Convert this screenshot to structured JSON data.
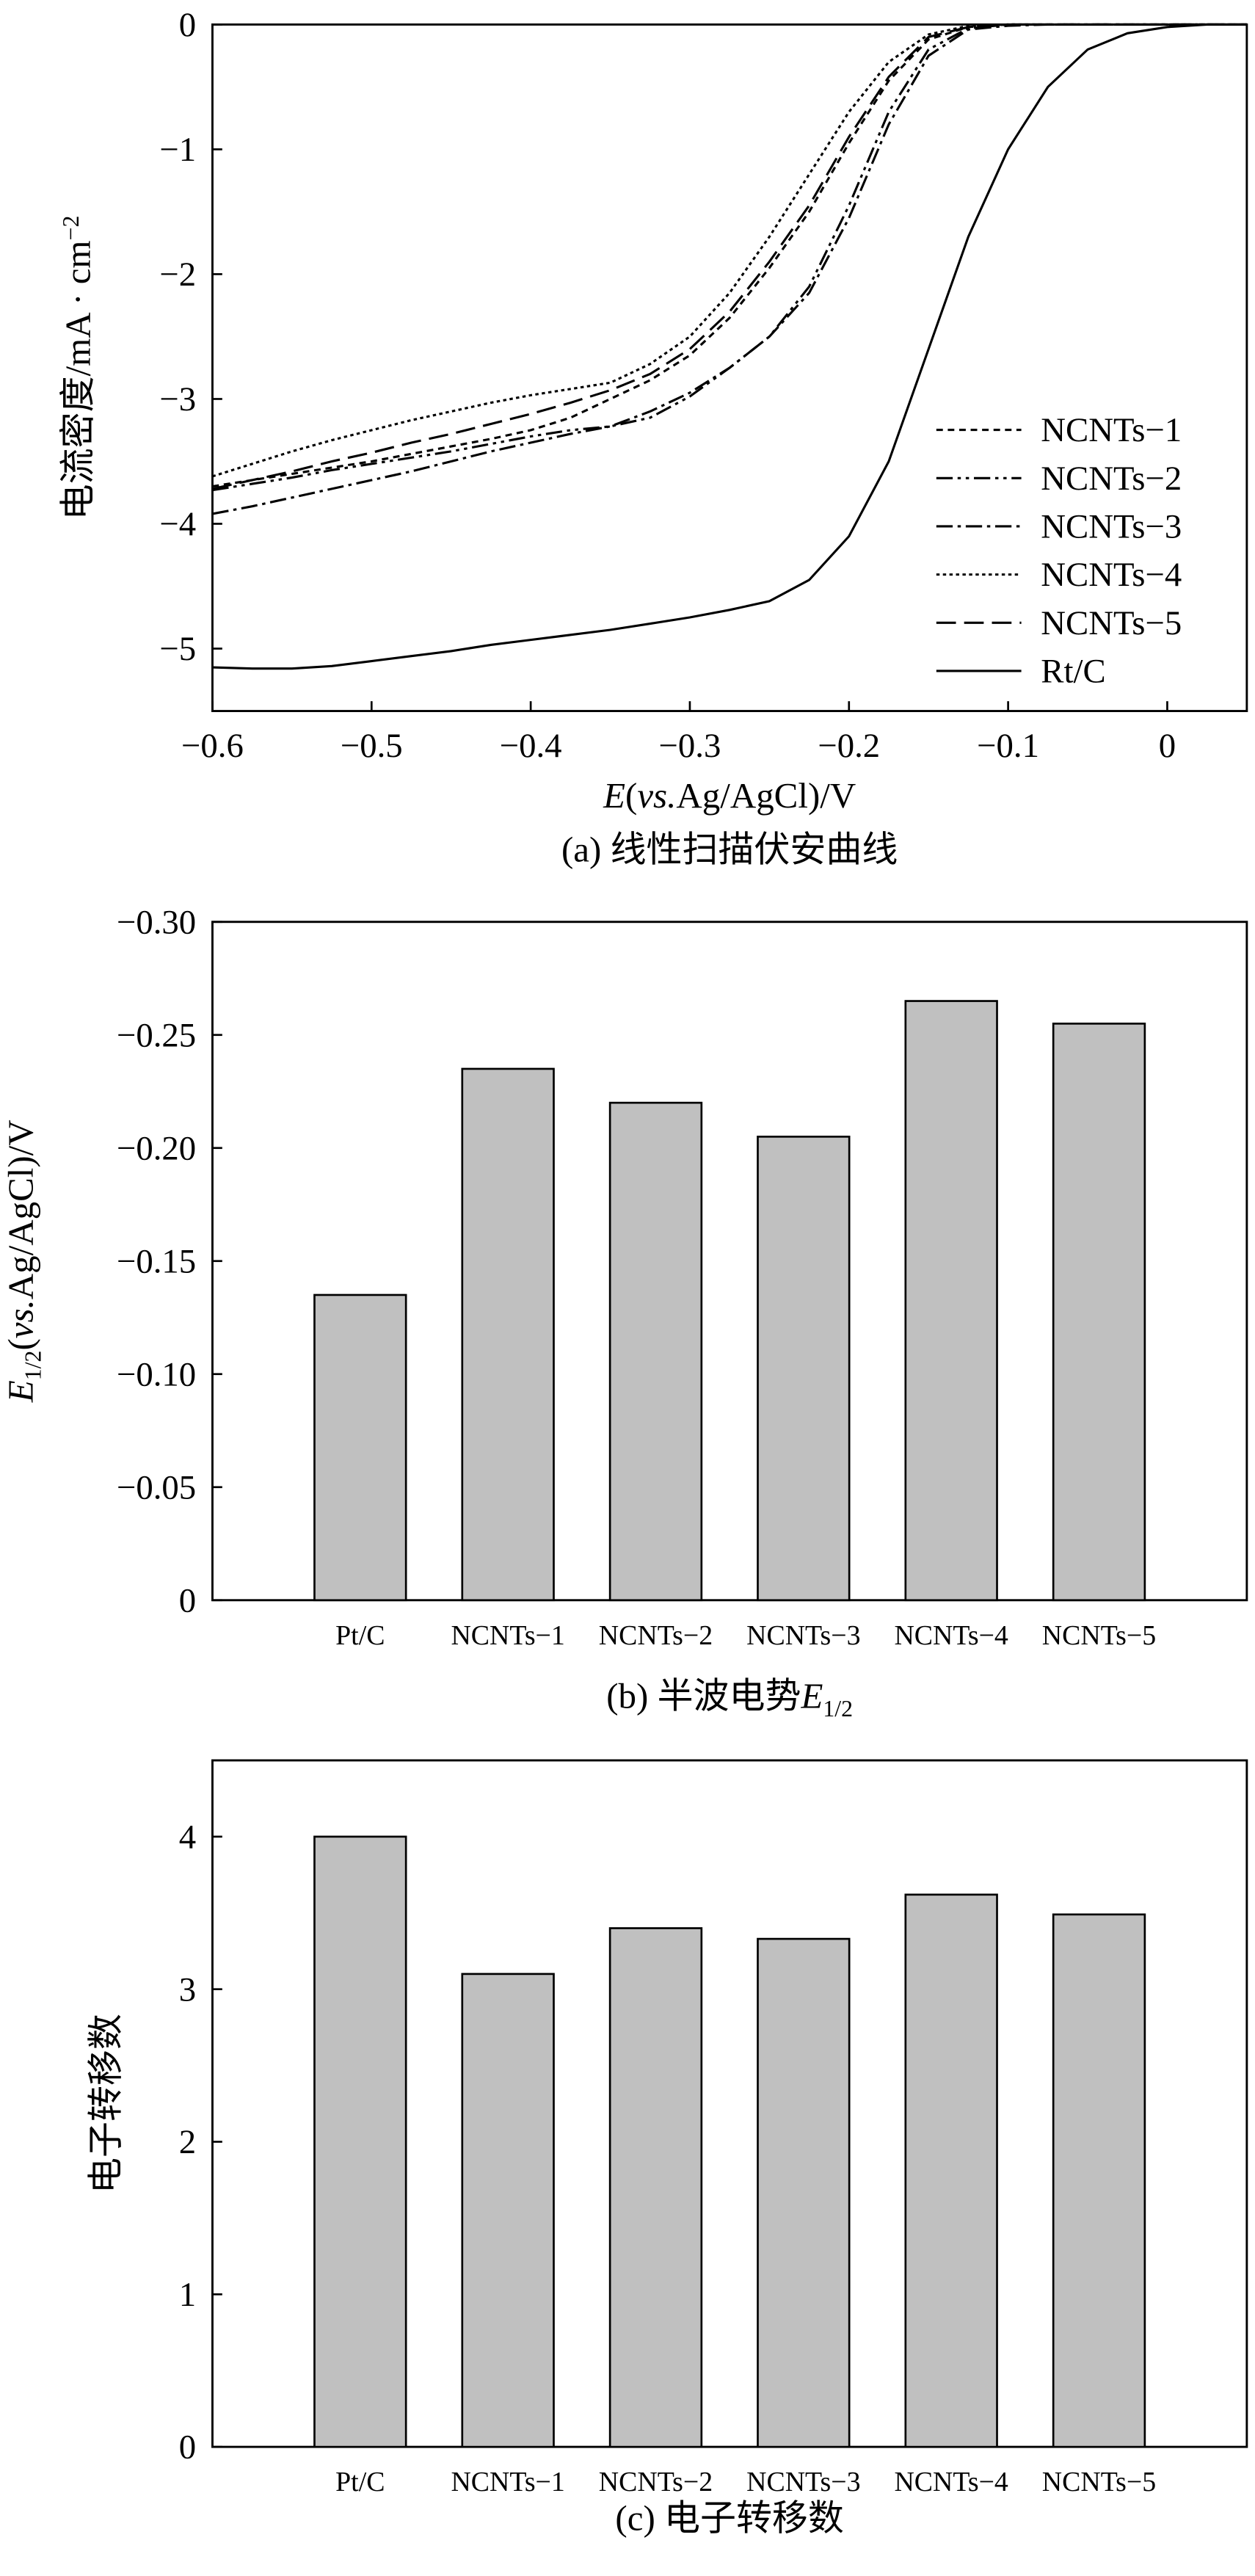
{
  "chart_data": [
    {
      "type": "line",
      "title": "(a) 线性扫描伏安曲线",
      "xlabel": [
        "E",
        "(",
        "vs.",
        "Ag/AgCl)/V"
      ],
      "ylabel": [
        "电流密度/mA · cm",
        "−2"
      ],
      "x": [
        -0.6,
        -0.575,
        -0.55,
        -0.525,
        -0.5,
        -0.475,
        -0.45,
        -0.425,
        -0.4,
        -0.375,
        -0.35,
        -0.325,
        -0.3,
        -0.275,
        -0.25,
        -0.225,
        -0.2,
        -0.175,
        -0.15,
        -0.125,
        -0.1,
        -0.075,
        -0.05,
        -0.025,
        0,
        0.025,
        0.05
      ],
      "xlim": [
        -0.6,
        0.05
      ],
      "xticks": [
        {
          "value": -0.6,
          "label": "−0.6"
        },
        {
          "value": -0.5,
          "label": "−0.5"
        },
        {
          "value": -0.4,
          "label": "−0.4"
        },
        {
          "value": -0.3,
          "label": "−0.3"
        },
        {
          "value": -0.2,
          "label": "−0.2"
        },
        {
          "value": -0.1,
          "label": "−0.1"
        },
        0
      ],
      "ylim": [
        -5.5,
        0
      ],
      "yticks": [
        {
          "value": -5,
          "label": "−5"
        },
        {
          "value": -4,
          "label": "−4"
        },
        {
          "value": -3,
          "label": "−3"
        },
        {
          "value": -2,
          "label": "−2"
        },
        {
          "value": -1,
          "label": "−1"
        },
        0
      ],
      "legend": "right",
      "series": [
        {
          "name": "NCNTs−1",
          "color": "#000000",
          "dash": "4,3",
          "values": [
            -3.7,
            -3.65,
            -3.6,
            -3.55,
            -3.5,
            -3.44,
            -3.38,
            -3.32,
            -3.25,
            -3.15,
            -3.0,
            -2.85,
            -2.65,
            -2.35,
            -1.95,
            -1.5,
            -0.95,
            -0.45,
            -0.12,
            -0.02,
            0,
            0,
            0,
            0,
            0,
            0,
            0
          ]
        },
        {
          "name": "NCNTs−2",
          "color": "#000000",
          "dash": "10,3,2,3,2,3",
          "values": [
            -3.73,
            -3.68,
            -3.63,
            -3.57,
            -3.52,
            -3.47,
            -3.42,
            -3.36,
            -3.3,
            -3.25,
            -3.22,
            -3.15,
            -2.98,
            -2.75,
            -2.5,
            -2.1,
            -1.45,
            -0.7,
            -0.2,
            -0.03,
            0,
            0,
            0,
            0,
            0,
            0,
            0
          ]
        },
        {
          "name": "NCNTs−3",
          "color": "#000000",
          "dash": "10,3,2,3",
          "values": [
            -3.92,
            -3.86,
            -3.79,
            -3.72,
            -3.65,
            -3.58,
            -3.5,
            -3.42,
            -3.35,
            -3.28,
            -3.22,
            -3.1,
            -2.95,
            -2.75,
            -2.5,
            -2.15,
            -1.55,
            -0.8,
            -0.25,
            -0.04,
            -0.01,
            0,
            0,
            0,
            0,
            0,
            0
          ]
        },
        {
          "name": "NCNTs−4",
          "color": "#000000",
          "dash": "2,2",
          "values": [
            -3.62,
            -3.52,
            -3.42,
            -3.33,
            -3.25,
            -3.17,
            -3.1,
            -3.03,
            -2.97,
            -2.92,
            -2.87,
            -2.72,
            -2.5,
            -2.15,
            -1.7,
            -1.2,
            -0.7,
            -0.3,
            -0.08,
            -0.01,
            0,
            0,
            0,
            0,
            0,
            0,
            0
          ]
        },
        {
          "name": "NCNTs−5",
          "color": "#000000",
          "dash": "12,5",
          "values": [
            -3.72,
            -3.65,
            -3.58,
            -3.5,
            -3.43,
            -3.35,
            -3.28,
            -3.2,
            -3.12,
            -3.03,
            -2.93,
            -2.8,
            -2.6,
            -2.3,
            -1.9,
            -1.45,
            -0.9,
            -0.42,
            -0.1,
            -0.02,
            0,
            0,
            0,
            0,
            0,
            0,
            0
          ]
        },
        {
          "name": "Rt/C",
          "color": "#000000",
          "dash": "none",
          "values": [
            -5.15,
            -5.16,
            -5.16,
            -5.14,
            -5.1,
            -5.06,
            -5.02,
            -4.97,
            -4.93,
            -4.89,
            -4.85,
            -4.8,
            -4.75,
            -4.69,
            -4.62,
            -4.45,
            -4.1,
            -3.5,
            -2.6,
            -1.7,
            -1.0,
            -0.5,
            -0.2,
            -0.07,
            -0.02,
            0,
            0
          ]
        }
      ]
    },
    {
      "type": "bar",
      "title": [
        "(b) 半波电势",
        "E",
        "1/2"
      ],
      "ylabel": [
        "E",
        "1/2",
        "(",
        "vs.",
        "Ag/AgCl)/V"
      ],
      "categories": [
        "Pt/C",
        "NCNTs−1",
        "NCNTs−2",
        "NCNTs−3",
        "NCNTs−4",
        "NCNTs−5"
      ],
      "values": [
        -0.135,
        -0.235,
        -0.22,
        -0.205,
        -0.265,
        -0.255
      ],
      "color": "#c0c0c0",
      "ylim": [
        0,
        -0.3
      ],
      "yticks": [
        0,
        {
          "value": -0.05,
          "label": "−0.05"
        },
        {
          "value": -0.1,
          "label": "−0.10"
        },
        {
          "value": -0.15,
          "label": "−0.15"
        },
        {
          "value": -0.2,
          "label": "−0.20"
        },
        {
          "value": -0.25,
          "label": "−0.25"
        },
        {
          "value": -0.3,
          "label": "−0.30"
        }
      ]
    },
    {
      "type": "bar",
      "title": [
        "(c) 电子转移数"
      ],
      "ylabel": [
        "电子转移数"
      ],
      "categories": [
        "Pt/C",
        "NCNTs−1",
        "NCNTs−2",
        "NCNTs−3",
        "NCNTs−4",
        "NCNTs−5"
      ],
      "values": [
        4.0,
        3.1,
        3.4,
        3.33,
        3.62,
        3.49
      ],
      "color": "#c0c0c0",
      "ylim": [
        0,
        4.5
      ],
      "yticks": [
        0,
        1,
        2,
        3,
        4
      ]
    }
  ]
}
